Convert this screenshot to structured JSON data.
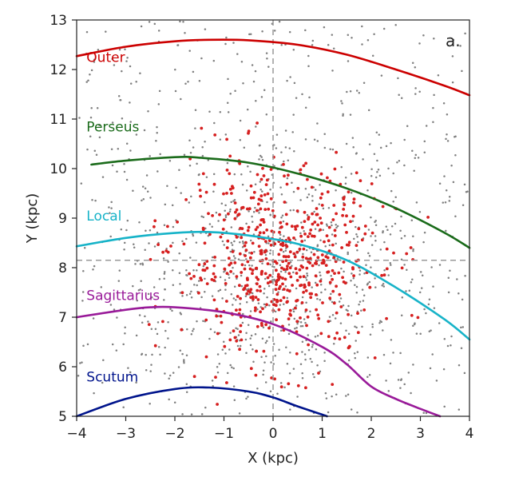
{
  "chart_data": {
    "type": "scatter",
    "panel_label": "a.",
    "xlabel": "X (kpc)",
    "ylabel": "Y (kpc)",
    "xlim": [
      -4,
      4
    ],
    "ylim": [
      5,
      13
    ],
    "x_ticks": [
      -4,
      -3,
      -2,
      -1,
      0,
      1,
      2,
      3,
      4
    ],
    "y_ticks": [
      5,
      6,
      7,
      8,
      9,
      10,
      11,
      12,
      13
    ],
    "x_tick_labels": [
      "−4",
      "−3",
      "−2",
      "−1",
      "0",
      "1",
      "2",
      "3",
      "4"
    ],
    "y_tick_labels": [
      "5",
      "6",
      "7",
      "8",
      "9",
      "10",
      "11",
      "12",
      "13"
    ],
    "grid": false,
    "reference_lines": {
      "x": 0,
      "y": 8.15
    },
    "arms": [
      {
        "name": "Outer",
        "color": "#cc0000",
        "label_pos": [
          -3.8,
          12.15
        ],
        "x": [
          -4.0,
          -3.0,
          -2.0,
          -1.3,
          -0.5,
          0.5,
          1.5,
          2.5,
          3.5,
          4.0
        ],
        "y": [
          12.27,
          12.46,
          12.57,
          12.6,
          12.59,
          12.5,
          12.3,
          12.0,
          11.67,
          11.48
        ]
      },
      {
        "name": "Perseus",
        "color": "#1a6b1a",
        "label_pos": [
          -3.8,
          10.75
        ],
        "x": [
          -3.7,
          -3.0,
          -2.0,
          -1.5,
          -0.5,
          0.5,
          1.5,
          2.5,
          3.5,
          4.0
        ],
        "y": [
          10.08,
          10.16,
          10.23,
          10.22,
          10.12,
          9.9,
          9.6,
          9.2,
          8.7,
          8.4
        ]
      },
      {
        "name": "Local",
        "color": "#17b3c8",
        "label_pos": [
          -3.8,
          8.95
        ],
        "x": [
          -4.0,
          -3.0,
          -2.0,
          -1.3,
          -0.5,
          0.5,
          1.5,
          2.5,
          3.5,
          4.0
        ],
        "y": [
          8.43,
          8.6,
          8.7,
          8.72,
          8.65,
          8.48,
          8.15,
          7.6,
          6.95,
          6.55
        ]
      },
      {
        "name": "Sagittarius",
        "color": "#991a99",
        "label_pos": [
          -3.8,
          7.35
        ],
        "x": [
          -4.0,
          -3.0,
          -2.5,
          -2.0,
          -1.0,
          0.0,
          1.0,
          1.5,
          2.0,
          2.5,
          3.0,
          3.4
        ],
        "y": [
          7.0,
          7.15,
          7.2,
          7.2,
          7.1,
          6.86,
          6.4,
          6.05,
          5.6,
          5.35,
          5.15,
          5.0
        ]
      },
      {
        "name": "Scutum",
        "color": "#00148c",
        "label_pos": [
          -3.8,
          5.7
        ],
        "x": [
          -4.0,
          -3.0,
          -2.0,
          -1.3,
          -0.5,
          0.0,
          0.5,
          1.1
        ],
        "y": [
          5.0,
          5.35,
          5.55,
          5.58,
          5.5,
          5.38,
          5.2,
          5.0
        ]
      }
    ],
    "series": [
      {
        "name": "",
        "color": "#d62020",
        "distribution": "concentrated near Sun, mostly 6-10 kpc"
      },
      {
        "name": "",
        "color": "#808080",
        "distribution": "field stars across full panel"
      }
    ]
  }
}
